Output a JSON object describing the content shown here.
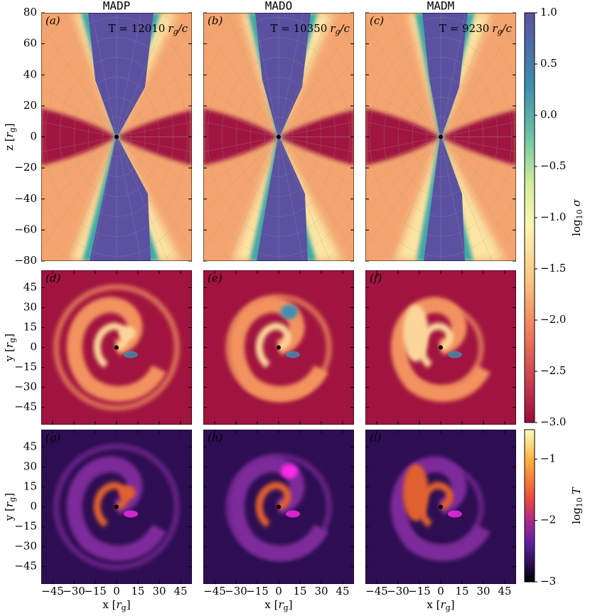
{
  "columns": [
    {
      "title": "MADP",
      "time": "T = 12010"
    },
    {
      "title": "MADO",
      "time": "T = 10350"
    },
    {
      "title": "MADM",
      "time": "T = 9230"
    }
  ],
  "panel_letters": [
    "(a)",
    "(b)",
    "(c)",
    "(d)",
    "(e)",
    "(f)",
    "(g)",
    "(h)",
    "(i)"
  ],
  "time_unit": {
    "var": "r",
    "sub": "g",
    "tail": "/c"
  },
  "meridional": {
    "ylabel": {
      "text": "z [",
      "var": "r",
      "sub": "g",
      "close": "]"
    },
    "ylim": [
      -80,
      80
    ],
    "yticks": [
      80,
      60,
      40,
      20,
      0,
      {
        "value": -20,
        "label": "−20"
      },
      {
        "value": -40,
        "label": "−40"
      },
      {
        "value": -60,
        "label": "−60"
      },
      {
        "value": -80,
        "label": "−80"
      }
    ]
  },
  "equatorial": {
    "ylabel": {
      "text": "y [",
      "var": "r",
      "sub": "g",
      "close": "]"
    },
    "xlabel": {
      "text": "x [",
      "var": "r",
      "sub": "g",
      "close": "]"
    },
    "xlim": [
      -53,
      53
    ],
    "ylim": [
      -58,
      58
    ],
    "xticks": [
      {
        "value": -45,
        "label": "−45"
      },
      {
        "value": -30,
        "label": "−30"
      },
      {
        "value": -15,
        "label": "−15"
      },
      0,
      15,
      30,
      45
    ],
    "yticks": [
      45,
      30,
      15,
      0,
      {
        "value": -15,
        "label": "−15"
      },
      {
        "value": -30,
        "label": "−30"
      },
      {
        "value": -45,
        "label": "−45"
      }
    ]
  },
  "colorbars": [
    {
      "label": {
        "text": "log",
        "sub": "10",
        "var": "σ"
      },
      "ylim": [
        -3,
        1
      ],
      "yticks": [
        {
          "value": 1,
          "label": "1.0"
        },
        {
          "value": 0.5,
          "label": "0.5"
        },
        {
          "value": 0,
          "label": "0.0"
        },
        {
          "value": -0.5,
          "label": "−0.5"
        },
        {
          "value": -1,
          "label": "−1.0"
        },
        {
          "value": -1.5,
          "label": "−1.5"
        },
        {
          "value": -2,
          "label": "−2.0"
        },
        {
          "value": -2.5,
          "label": "−2.5"
        },
        {
          "value": -3,
          "label": "−3.0"
        }
      ]
    },
    {
      "label": {
        "text": "log",
        "sub": "10",
        "var": "T"
      },
      "ylim": [
        -3,
        -0.52
      ],
      "yticks": [
        {
          "value": -1,
          "label": "−1"
        },
        {
          "value": -2,
          "label": "−2"
        },
        {
          "value": -3,
          "label": "−3"
        }
      ]
    }
  ]
}
